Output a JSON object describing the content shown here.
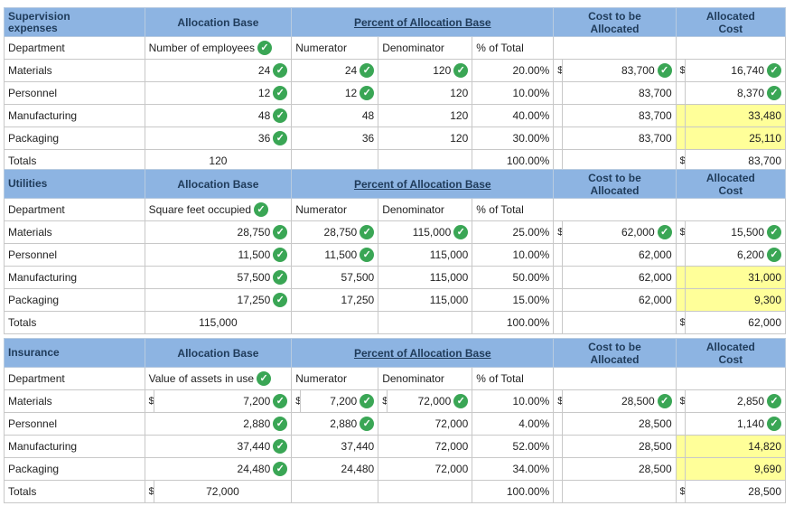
{
  "col_headers": {
    "allocation_base": "Allocation Base",
    "percent_base": "Percent of Allocation Base",
    "cost_to_be_1": "Cost to be",
    "cost_to_be_2": "Allocated",
    "allocated_1": "Allocated",
    "allocated_2": "Cost",
    "department": "Department",
    "numerator": "Numerator",
    "denominator": "Denominator",
    "pct_total": "% of Total",
    "totals": "Totals",
    "dollar": "$"
  },
  "icons": {
    "check": "check-circle-icon",
    "check_color": "#3aa655",
    "highlight_color": "#ffff99",
    "header_color": "#8db4e2"
  },
  "supervision": {
    "title_1": "Supervision",
    "title_2": "expenses",
    "base_label": "Number of employees",
    "rows": [
      {
        "name": "Materials",
        "base": "24",
        "num": "24",
        "den": "120",
        "pct": "20.00%",
        "cost": "83,700",
        "alloc": "16,740"
      },
      {
        "name": "Personnel",
        "base": "12",
        "num": "12",
        "den": "120",
        "pct": "10.00%",
        "cost": "83,700",
        "alloc": "8,370"
      },
      {
        "name": "Manufacturing",
        "base": "48",
        "num": "48",
        "den": "120",
        "pct": "40.00%",
        "cost": "83,700",
        "alloc": "33,480"
      },
      {
        "name": "Packaging",
        "base": "36",
        "num": "36",
        "den": "120",
        "pct": "30.00%",
        "cost": "83,700",
        "alloc": "25,110"
      }
    ],
    "total_base": "120",
    "total_pct": "100.00%",
    "total_alloc": "83,700"
  },
  "utilities": {
    "title_1": "Utilities",
    "base_label": "Square feet occupied",
    "rows": [
      {
        "name": "Materials",
        "base": "28,750",
        "num": "28,750",
        "den": "115,000",
        "pct": "25.00%",
        "cost": "62,000",
        "alloc": "15,500"
      },
      {
        "name": "Personnel",
        "base": "11,500",
        "num": "11,500",
        "den": "115,000",
        "pct": "10.00%",
        "cost": "62,000",
        "alloc": "6,200"
      },
      {
        "name": "Manufacturing",
        "base": "57,500",
        "num": "57,500",
        "den": "115,000",
        "pct": "50.00%",
        "cost": "62,000",
        "alloc": "31,000"
      },
      {
        "name": "Packaging",
        "base": "17,250",
        "num": "17,250",
        "den": "115,000",
        "pct": "15.00%",
        "cost": "62,000",
        "alloc": "9,300"
      }
    ],
    "total_base": "115,000",
    "total_pct": "100.00%",
    "total_alloc": "62,000"
  },
  "insurance": {
    "title_1": "Insurance",
    "base_label": "Value of assets in use",
    "rows": [
      {
        "name": "Materials",
        "base": "7,200",
        "num": "7,200",
        "den": "72,000",
        "pct": "10.00%",
        "cost": "28,500",
        "alloc": "2,850"
      },
      {
        "name": "Personnel",
        "base": "2,880",
        "num": "2,880",
        "den": "72,000",
        "pct": "4.00%",
        "cost": "28,500",
        "alloc": "1,140"
      },
      {
        "name": "Manufacturing",
        "base": "37,440",
        "num": "37,440",
        "den": "72,000",
        "pct": "52.00%",
        "cost": "28,500",
        "alloc": "14,820"
      },
      {
        "name": "Packaging",
        "base": "24,480",
        "num": "24,480",
        "den": "72,000",
        "pct": "34.00%",
        "cost": "28,500",
        "alloc": "9,690"
      }
    ],
    "total_base": "72,000",
    "total_pct": "100.00%",
    "total_alloc": "28,500"
  }
}
